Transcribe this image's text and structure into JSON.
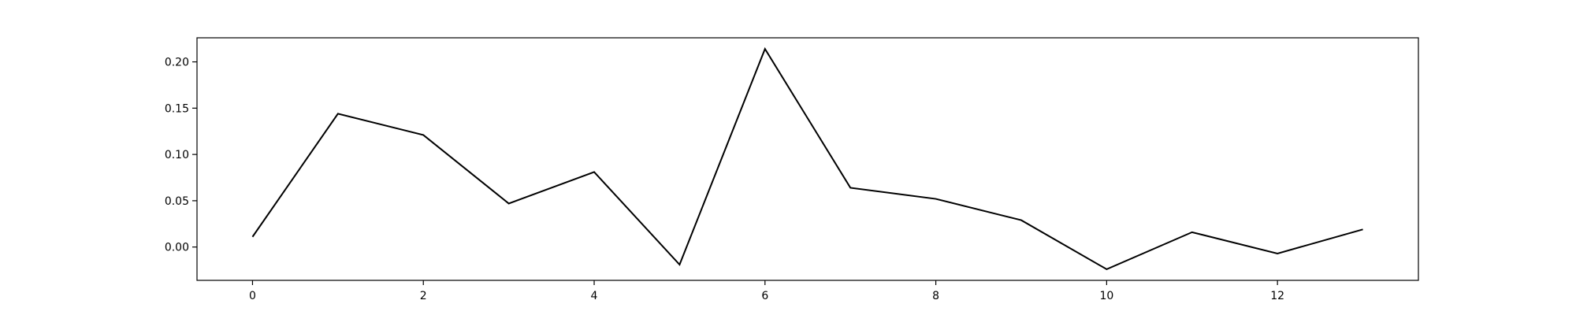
{
  "chart_data": {
    "type": "line",
    "title": "",
    "xlabel": "",
    "ylabel": "",
    "x": [
      0,
      1,
      2,
      3,
      4,
      5,
      6,
      7,
      8,
      9,
      10,
      11,
      12,
      13
    ],
    "series": [
      {
        "values": [
          0.011,
          0.144,
          0.121,
          0.047,
          0.081,
          -0.019,
          0.214,
          0.064,
          0.052,
          0.029,
          -0.024,
          0.016,
          -0.007,
          0.019
        ],
        "color": "#000000"
      }
    ],
    "xlim": [
      -0.65,
      13.65
    ],
    "ylim": [
      -0.036,
      0.226
    ],
    "xticks": [
      0,
      2,
      4,
      6,
      8,
      10,
      12
    ],
    "xtick_labels": [
      "0",
      "2",
      "4",
      "6",
      "8",
      "10",
      "12"
    ],
    "yticks": [
      0.0,
      0.05,
      0.1,
      0.15,
      0.2
    ],
    "ytick_labels": [
      "0.00",
      "0.05",
      "0.10",
      "0.15",
      "0.20"
    ],
    "grid": false,
    "legend": "none"
  }
}
